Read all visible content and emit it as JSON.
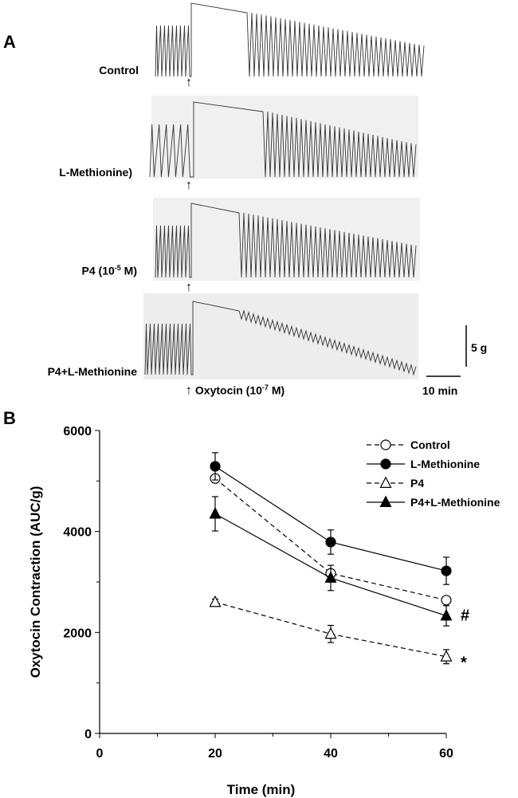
{
  "panel_a": {
    "letter": "A",
    "traces": [
      {
        "label": "Control"
      },
      {
        "label": "L-Methionine)"
      },
      {
        "label_main": "P4 (10",
        "label_exp": "-5",
        "label_tail": " M)"
      },
      {
        "label": "P4+L-Methionine"
      }
    ],
    "oxytocin_label_main": "Oxytocin (10",
    "oxytocin_label_exp": "-7",
    "oxytocin_label_tail": " M)",
    "arrow_glyph": "↑",
    "scale_y_label": "5 g",
    "scale_x_label": "10 min"
  },
  "panel_b": {
    "letter": "B"
  },
  "chart_data": {
    "type": "line",
    "title": "",
    "xlabel": "Time (min)",
    "ylabel": "Oxytocin Contraction (AUC/g)",
    "xlim": [
      0,
      60
    ],
    "ylim": [
      0,
      6000
    ],
    "x_ticks": [
      0,
      20,
      40,
      60
    ],
    "y_ticks": [
      0,
      2000,
      4000,
      6000
    ],
    "x": [
      20,
      40,
      60
    ],
    "series": [
      {
        "name": "Control",
        "values": [
          5050,
          3170,
          2640
        ],
        "errors": [
          0,
          0,
          0
        ],
        "marker": "circle-open",
        "dash": true
      },
      {
        "name": "L-Methionine",
        "values": [
          5290,
          3790,
          3220
        ],
        "errors": [
          270,
          240,
          270
        ],
        "marker": "circle-filled",
        "dash": false
      },
      {
        "name": "P4",
        "values": [
          2600,
          1970,
          1520
        ],
        "errors": [
          60,
          170,
          140
        ],
        "marker": "triangle-open",
        "dash": true
      },
      {
        "name": "P4+L-Methionine",
        "values": [
          4350,
          3080,
          2330
        ],
        "errors": [
          340,
          250,
          200
        ],
        "marker": "triangle-filled",
        "dash": false
      }
    ],
    "annotations": [
      {
        "text": "#",
        "series": "P4+L-Methionine",
        "x": 60
      },
      {
        "text": "*",
        "series": "P4",
        "x": 60
      }
    ],
    "legend_position": "top-right",
    "grid": false
  }
}
